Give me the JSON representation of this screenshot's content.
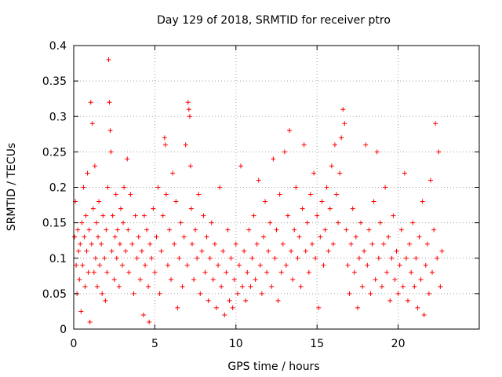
{
  "chart_data": {
    "type": "scatter",
    "title": "Day 129 of 2018, SRMTID for receiver ptro",
    "xlabel": "GPS time / hours",
    "ylabel": "SRMTID / TECUs",
    "xlim": [
      0,
      25
    ],
    "ylim": [
      0,
      0.4
    ],
    "grid": true,
    "marker": "+",
    "color": "#ff0000",
    "x_ticks": [
      {
        "value": 0,
        "label": "0"
      },
      {
        "value": 5,
        "label": "5"
      },
      {
        "value": 10,
        "label": "10"
      },
      {
        "value": 15,
        "label": "15"
      },
      {
        "value": 20,
        "label": "20"
      }
    ],
    "y_ticks": [
      {
        "value": 0,
        "label": "0"
      },
      {
        "value": 0.05,
        "label": "0.05"
      },
      {
        "value": 0.1,
        "label": "0.1"
      },
      {
        "value": 0.15,
        "label": "0.15"
      },
      {
        "value": 0.2,
        "label": "0.2"
      },
      {
        "value": 0.25,
        "label": "0.25"
      },
      {
        "value": 0.3,
        "label": "0.3"
      },
      {
        "value": 0.35,
        "label": "0.35"
      },
      {
        "value": 0.4,
        "label": "0.4"
      }
    ],
    "series": [
      {
        "name": "ptro",
        "points": [
          [
            0.05,
            0.13
          ],
          [
            0.1,
            0.18
          ],
          [
            0.15,
            0.09
          ],
          [
            0.2,
            0.05
          ],
          [
            0.25,
            0.14
          ],
          [
            0.3,
            0.11
          ],
          [
            0.35,
            0.07
          ],
          [
            0.4,
            0.12
          ],
          [
            0.45,
            0.025
          ],
          [
            0.5,
            0.15
          ],
          [
            0.55,
            0.09
          ],
          [
            0.6,
            0.2
          ],
          [
            0.65,
            0.13
          ],
          [
            0.7,
            0.06
          ],
          [
            0.75,
            0.16
          ],
          [
            0.8,
            0.11
          ],
          [
            0.85,
            0.22
          ],
          [
            0.9,
            0.08
          ],
          [
            0.95,
            0.14
          ],
          [
            1.0,
            0.01
          ],
          [
            1.05,
            0.32
          ],
          [
            1.1,
            0.12
          ],
          [
            1.15,
            0.29
          ],
          [
            1.2,
            0.17
          ],
          [
            1.25,
            0.08
          ],
          [
            1.3,
            0.23
          ],
          [
            1.35,
            0.1
          ],
          [
            1.4,
            0.15
          ],
          [
            1.45,
            0.06
          ],
          [
            1.5,
            0.13
          ],
          [
            1.55,
            0.18
          ],
          [
            1.6,
            0.09
          ],
          [
            1.7,
            0.12
          ],
          [
            1.75,
            0.05
          ],
          [
            1.8,
            0.16
          ],
          [
            1.9,
            0.1
          ],
          [
            1.95,
            0.04
          ],
          [
            2.0,
            0.14
          ],
          [
            2.05,
            0.08
          ],
          [
            2.1,
            0.2
          ],
          [
            2.15,
            0.38
          ],
          [
            2.2,
            0.32
          ],
          [
            2.25,
            0.28
          ],
          [
            2.3,
            0.25
          ],
          [
            2.35,
            0.11
          ],
          [
            2.4,
            0.16
          ],
          [
            2.5,
            0.07
          ],
          [
            2.55,
            0.13
          ],
          [
            2.6,
            0.19
          ],
          [
            2.65,
            0.1
          ],
          [
            2.7,
            0.14
          ],
          [
            2.8,
            0.06
          ],
          [
            2.85,
            0.12
          ],
          [
            2.9,
            0.17
          ],
          [
            3.0,
            0.09
          ],
          [
            3.05,
            0.15
          ],
          [
            3.1,
            0.2
          ],
          [
            3.2,
            0.11
          ],
          [
            3.3,
            0.24
          ],
          [
            3.35,
            0.14
          ],
          [
            3.4,
            0.08
          ],
          [
            3.5,
            0.19
          ],
          [
            3.6,
            0.12
          ],
          [
            3.7,
            0.05
          ],
          [
            3.8,
            0.16
          ],
          [
            3.9,
            0.1
          ],
          [
            4.0,
            0.13
          ],
          [
            4.1,
            0.07
          ],
          [
            4.2,
            0.11
          ],
          [
            4.3,
            0.02
          ],
          [
            4.35,
            0.16
          ],
          [
            4.4,
            0.09
          ],
          [
            4.5,
            0.14
          ],
          [
            4.6,
            0.06
          ],
          [
            4.65,
            0.01
          ],
          [
            4.7,
            0.12
          ],
          [
            4.8,
            0.1
          ],
          [
            4.9,
            0.17
          ],
          [
            5.0,
            0.08
          ],
          [
            5.1,
            0.13
          ],
          [
            5.2,
            0.2
          ],
          [
            5.3,
            0.05
          ],
          [
            5.4,
            0.11
          ],
          [
            5.5,
            0.16
          ],
          [
            5.6,
            0.27
          ],
          [
            5.65,
            0.26
          ],
          [
            5.7,
            0.19
          ],
          [
            5.8,
            0.09
          ],
          [
            5.9,
            0.14
          ],
          [
            6.0,
            0.07
          ],
          [
            6.1,
            0.22
          ],
          [
            6.2,
            0.12
          ],
          [
            6.3,
            0.18
          ],
          [
            6.4,
            0.03
          ],
          [
            6.5,
            0.1
          ],
          [
            6.6,
            0.15
          ],
          [
            6.7,
            0.06
          ],
          [
            6.8,
            0.13
          ],
          [
            6.9,
            0.26
          ],
          [
            7.0,
            0.09
          ],
          [
            7.05,
            0.32
          ],
          [
            7.1,
            0.31
          ],
          [
            7.15,
            0.3
          ],
          [
            7.2,
            0.23
          ],
          [
            7.25,
            0.17
          ],
          [
            7.3,
            0.12
          ],
          [
            7.4,
            0.07
          ],
          [
            7.5,
            0.14
          ],
          [
            7.6,
            0.1
          ],
          [
            7.7,
            0.19
          ],
          [
            7.8,
            0.05
          ],
          [
            7.9,
            0.11
          ],
          [
            8.0,
            0.16
          ],
          [
            8.1,
            0.08
          ],
          [
            8.2,
            0.13
          ],
          [
            8.3,
            0.04
          ],
          [
            8.4,
            0.1
          ],
          [
            8.5,
            0.15
          ],
          [
            8.6,
            0.07
          ],
          [
            8.7,
            0.12
          ],
          [
            8.8,
            0.03
          ],
          [
            8.9,
            0.09
          ],
          [
            9.0,
            0.2
          ],
          [
            9.1,
            0.06
          ],
          [
            9.2,
            0.11
          ],
          [
            9.3,
            0.02
          ],
          [
            9.4,
            0.08
          ],
          [
            9.5,
            0.14
          ],
          [
            9.6,
            0.04
          ],
          [
            9.7,
            0.1
          ],
          [
            9.8,
            0.03
          ],
          [
            9.9,
            0.07
          ],
          [
            10.0,
            0.12
          ],
          [
            10.1,
            0.05
          ],
          [
            10.2,
            0.09
          ],
          [
            10.3,
            0.23
          ],
          [
            10.4,
            0.06
          ],
          [
            10.5,
            0.11
          ],
          [
            10.6,
            0.04
          ],
          [
            10.7,
            0.08
          ],
          [
            10.8,
            0.14
          ],
          [
            10.9,
            0.06
          ],
          [
            11.0,
            0.1
          ],
          [
            11.1,
            0.16
          ],
          [
            11.2,
            0.07
          ],
          [
            11.3,
            0.12
          ],
          [
            11.4,
            0.21
          ],
          [
            11.5,
            0.09
          ],
          [
            11.6,
            0.05
          ],
          [
            11.7,
            0.13
          ],
          [
            11.8,
            0.18
          ],
          [
            11.9,
            0.08
          ],
          [
            12.0,
            0.11
          ],
          [
            12.1,
            0.15
          ],
          [
            12.2,
            0.06
          ],
          [
            12.3,
            0.24
          ],
          [
            12.4,
            0.1
          ],
          [
            12.5,
            0.14
          ],
          [
            12.6,
            0.04
          ],
          [
            12.7,
            0.19
          ],
          [
            12.8,
            0.08
          ],
          [
            12.9,
            0.12
          ],
          [
            13.0,
            0.25
          ],
          [
            13.1,
            0.09
          ],
          [
            13.2,
            0.16
          ],
          [
            13.3,
            0.28
          ],
          [
            13.4,
            0.11
          ],
          [
            13.5,
            0.07
          ],
          [
            13.6,
            0.14
          ],
          [
            13.7,
            0.2
          ],
          [
            13.8,
            0.1
          ],
          [
            13.9,
            0.13
          ],
          [
            14.0,
            0.06
          ],
          [
            14.1,
            0.17
          ],
          [
            14.2,
            0.26
          ],
          [
            14.3,
            0.11
          ],
          [
            14.4,
            0.15
          ],
          [
            14.5,
            0.08
          ],
          [
            14.6,
            0.19
          ],
          [
            14.7,
            0.12
          ],
          [
            14.8,
            0.22
          ],
          [
            14.9,
            0.1
          ],
          [
            15.0,
            0.16
          ],
          [
            15.1,
            0.03
          ],
          [
            15.2,
            0.13
          ],
          [
            15.3,
            0.18
          ],
          [
            15.4,
            0.09
          ],
          [
            15.5,
            0.14
          ],
          [
            15.6,
            0.2
          ],
          [
            15.7,
            0.11
          ],
          [
            15.8,
            0.17
          ],
          [
            15.9,
            0.23
          ],
          [
            16.0,
            0.12
          ],
          [
            16.1,
            0.26
          ],
          [
            16.2,
            0.19
          ],
          [
            16.3,
            0.15
          ],
          [
            16.4,
            0.22
          ],
          [
            16.5,
            0.27
          ],
          [
            16.6,
            0.31
          ],
          [
            16.7,
            0.29
          ],
          [
            16.8,
            0.14
          ],
          [
            16.9,
            0.09
          ],
          [
            17.0,
            0.05
          ],
          [
            17.1,
            0.12
          ],
          [
            17.2,
            0.17
          ],
          [
            17.3,
            0.08
          ],
          [
            17.4,
            0.13
          ],
          [
            17.5,
            0.03
          ],
          [
            17.6,
            0.1
          ],
          [
            17.7,
            0.15
          ],
          [
            17.8,
            0.06
          ],
          [
            17.9,
            0.11
          ],
          [
            18.0,
            0.26
          ],
          [
            18.1,
            0.09
          ],
          [
            18.2,
            0.14
          ],
          [
            18.3,
            0.05
          ],
          [
            18.4,
            0.12
          ],
          [
            18.5,
            0.18
          ],
          [
            18.6,
            0.07
          ],
          [
            18.7,
            0.25
          ],
          [
            18.8,
            0.1
          ],
          [
            18.9,
            0.15
          ],
          [
            19.0,
            0.06
          ],
          [
            19.1,
            0.12
          ],
          [
            19.2,
            0.2
          ],
          [
            19.3,
            0.08
          ],
          [
            19.4,
            0.13
          ],
          [
            19.5,
            0.04
          ],
          [
            19.6,
            0.1
          ],
          [
            19.7,
            0.16
          ],
          [
            19.8,
            0.07
          ],
          [
            19.9,
            0.11
          ],
          [
            20.0,
            0.05
          ],
          [
            20.1,
            0.09
          ],
          [
            20.2,
            0.14
          ],
          [
            20.3,
            0.06
          ],
          [
            20.4,
            0.22
          ],
          [
            20.5,
            0.1
          ],
          [
            20.6,
            0.04
          ],
          [
            20.7,
            0.12
          ],
          [
            20.8,
            0.08
          ],
          [
            20.9,
            0.15
          ],
          [
            21.0,
            0.06
          ],
          [
            21.1,
            0.1
          ],
          [
            21.2,
            0.03
          ],
          [
            21.3,
            0.13
          ],
          [
            21.4,
            0.07
          ],
          [
            21.5,
            0.18
          ],
          [
            21.6,
            0.02
          ],
          [
            21.7,
            0.09
          ],
          [
            21.8,
            0.12
          ],
          [
            21.9,
            0.05
          ],
          [
            22.0,
            0.21
          ],
          [
            22.1,
            0.08
          ],
          [
            22.2,
            0.14
          ],
          [
            22.3,
            0.29
          ],
          [
            22.4,
            0.1
          ],
          [
            22.5,
            0.25
          ],
          [
            22.6,
            0.06
          ],
          [
            22.7,
            0.11
          ]
        ]
      }
    ]
  }
}
